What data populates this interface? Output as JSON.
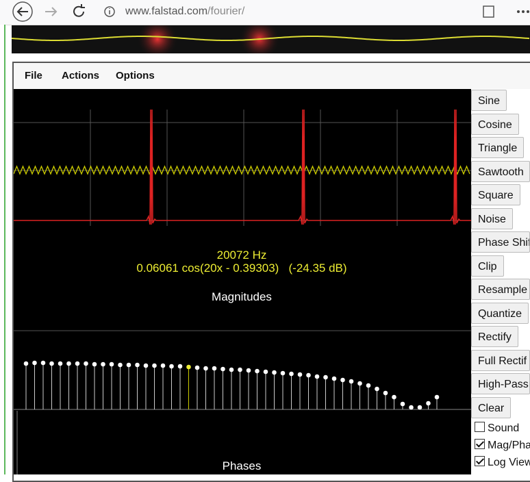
{
  "browser": {
    "url_host": "www.falstad.com",
    "url_path": "/fourier/"
  },
  "menu": [
    "File",
    "Actions",
    "Options"
  ],
  "readout": {
    "frequency": "20072 Hz",
    "term": "0.06061 cos(20x - 0.39303)   (-24.35 dB)"
  },
  "panels": {
    "magnitudes": "Magnitudes",
    "phases": "Phases"
  },
  "magnitudes": {
    "values": [
      67,
      68,
      68,
      67,
      67,
      67,
      67,
      67,
      66,
      66,
      66,
      65,
      65,
      65,
      64,
      64,
      64,
      63,
      63,
      62,
      61,
      60,
      60,
      59,
      58,
      58,
      57,
      56,
      55,
      54,
      53,
      52,
      51,
      50,
      48,
      47,
      45,
      43,
      41,
      38,
      35,
      30,
      24,
      18,
      8,
      3,
      3,
      9,
      18
    ],
    "selected": 19
  },
  "buttons": [
    "Sine",
    "Cosine",
    "Triangle",
    "Sawtooth",
    "Square",
    "Noise",
    "Phase Shif",
    "Clip",
    "Resample",
    "Quantize",
    "Rectify",
    "Full Rectif",
    "High-Pass",
    "Clear"
  ],
  "checkboxes": [
    {
      "label": "Sound",
      "checked": false
    },
    {
      "label": "Mag/Pha",
      "checked": true
    },
    {
      "label": "Log View",
      "checked": true
    }
  ]
}
